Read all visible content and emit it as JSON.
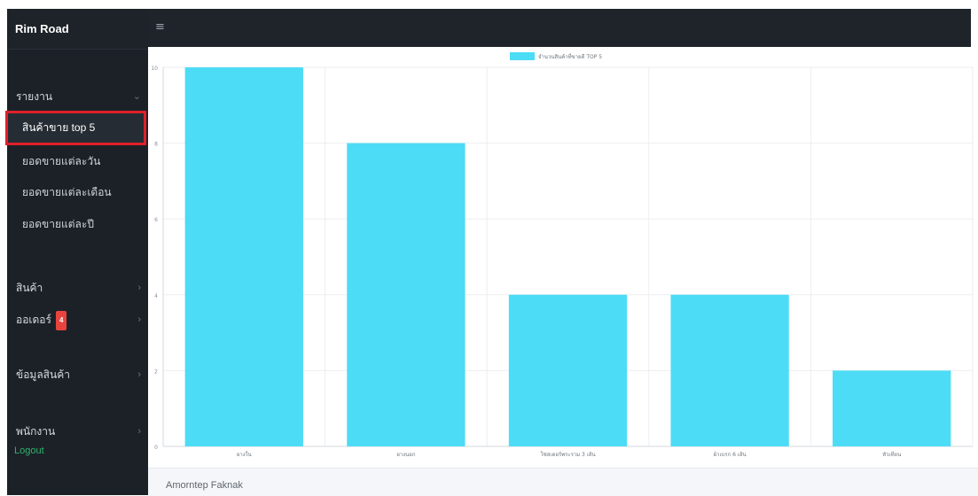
{
  "app": {
    "brand": "Rim Road"
  },
  "sidebar": {
    "sections": [
      {
        "label": "",
        "items": [
          {
            "label": "รายงาน",
            "expanded": true,
            "children": [
              {
                "label": "สินค้าขาย top 5",
                "active": true
              },
              {
                "label": "ยอดขายแต่ละวัน",
                "active": false
              },
              {
                "label": "ยอดขายแต่ละเดือน",
                "active": false
              },
              {
                "label": "ยอดขายแต่ละปี",
                "active": false
              }
            ]
          }
        ]
      },
      {
        "label": "",
        "items": [
          {
            "label": "สินค้า"
          },
          {
            "label": "ออเดอร์",
            "badge": "4"
          }
        ]
      },
      {
        "label": "",
        "items": [
          {
            "label": "ข้อมูลสินค้า"
          }
        ]
      },
      {
        "label": "",
        "items": [
          {
            "label": "พนักงาน"
          }
        ]
      }
    ],
    "logout": "Logout"
  },
  "topbar": {
    "menu_icon": "hamburger-icon"
  },
  "chart_data": {
    "type": "bar",
    "legend": "จำนวนสินค้าที่ขายดี TOP 5",
    "legend_position": "top-center",
    "grid": true,
    "categories": [
      "ยางใน",
      "ยางนอก",
      "โซ่สเตอร์พระราม 3 เส้น",
      "ผ้าเบรก 6 เส้น",
      "หัวเทียน"
    ],
    "values": [
      10,
      8,
      4,
      4,
      2
    ],
    "ylim": [
      0,
      10
    ],
    "yticks": [
      0,
      2,
      4,
      6,
      8,
      10
    ],
    "color": "#4ddcf5"
  },
  "footer": {
    "author": "Amorntep Faknak"
  }
}
